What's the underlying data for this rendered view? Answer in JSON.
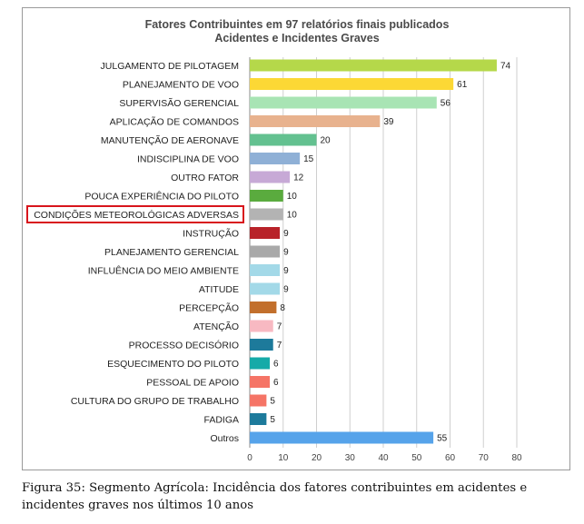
{
  "chart_data": {
    "type": "bar",
    "orientation": "horizontal",
    "title": [
      "Fatores Contribuintes em 97 relatórios finais publicados",
      "Acidentes e Incidentes Graves"
    ],
    "categories": [
      "JULGAMENTO DE PILOTAGEM",
      "PLANEJAMENTO DE VOO",
      "SUPERVISÃO GERENCIAL",
      "APLICAÇÃO DE COMANDOS",
      "MANUTENÇÃO DE AERONAVE",
      "INDISCIPLINA DE VOO",
      "OUTRO FATOR",
      "POUCA EXPERIÊNCIA DO PILOTO",
      "CONDIÇÕES METEOROLÓGICAS ADVERSAS",
      "INSTRUÇÃO",
      "PLANEJAMENTO GERENCIAL",
      "INFLUÊNCIA DO MEIO AMBIENTE",
      "ATITUDE",
      "PERCEPÇÃO",
      "ATENÇÃO",
      "PROCESSO DECISÓRIO",
      "ESQUECIMENTO DO PILOTO",
      "PESSOAL DE APOIO",
      "CULTURA DO GRUPO DE TRABALHO",
      "FADIGA",
      "Outros"
    ],
    "values": [
      74,
      61,
      56,
      39,
      20,
      15,
      12,
      10,
      10,
      9,
      9,
      9,
      9,
      8,
      7,
      7,
      6,
      6,
      5,
      5,
      55
    ],
    "colors": [
      "#b5d84a",
      "#fcd835",
      "#a8e4b4",
      "#e8b28e",
      "#63c190",
      "#8fb0d6",
      "#c7a9d6",
      "#5aab3e",
      "#b3b3b3",
      "#b82329",
      "#a9a9a9",
      "#a3d9e8",
      "#a3d9e8",
      "#c26f2c",
      "#f8b9c2",
      "#1d7a9b",
      "#15aaa8",
      "#f57466",
      "#f57466",
      "#1d7a9b",
      "#56a3ea"
    ],
    "xticks": [
      0,
      10,
      20,
      30,
      40,
      50,
      60,
      70,
      80
    ],
    "xlim": [
      0,
      80
    ],
    "grid": true,
    "highlighted_category": "CONDIÇÕES METEOROLÓGICAS ADVERSAS",
    "highlight_color": "#d8151c"
  },
  "caption": "Figura 35: Segmento Agrícola: Incidência dos fatores contribuintes em acidentes e incidentes graves nos últimos 10 anos"
}
